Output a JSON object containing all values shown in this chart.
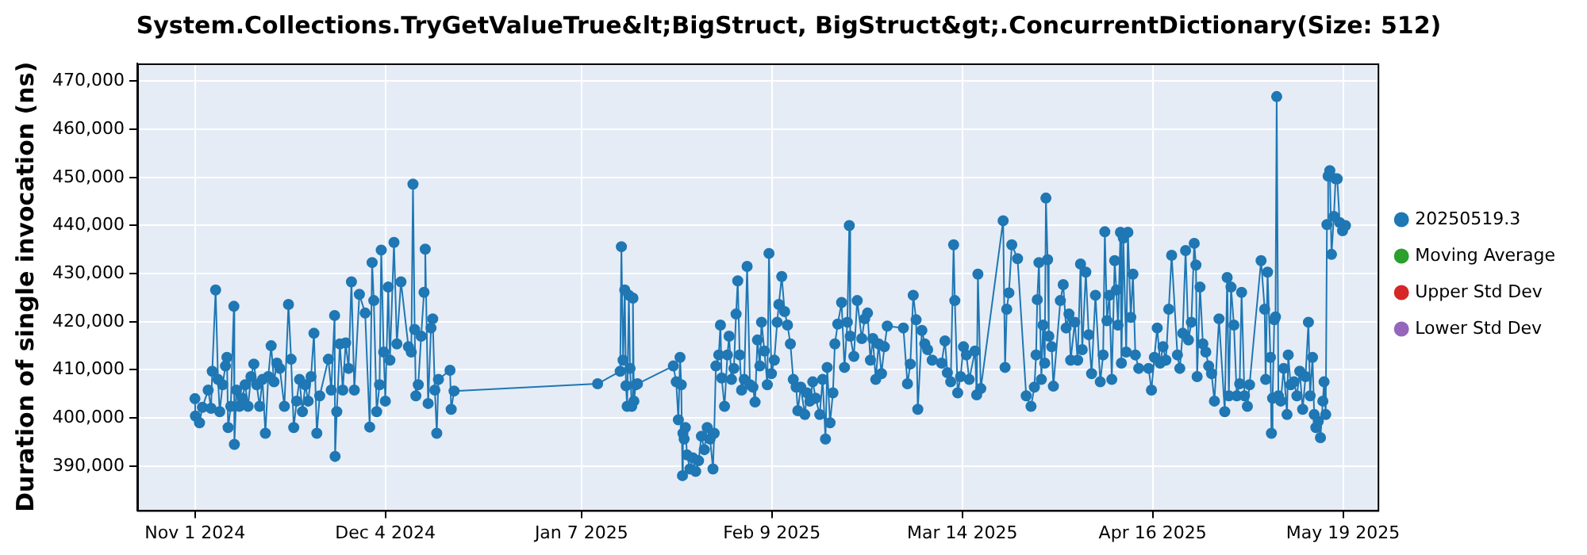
{
  "chart_data": {
    "type": "line",
    "title": "System.Collections.TryGetValueTrue&lt;BigStruct, BigStruct&gt;.ConcurrentDictionary(Size: 512)",
    "ylabel": "Duration of single invocation (ns)",
    "xlim": [
      "2024-10-22",
      "2025-05-25"
    ],
    "xticks": [
      {
        "value": "2024-11-01",
        "label": "Nov 1 2024"
      },
      {
        "value": "2024-12-04",
        "label": "Dec 4 2024"
      },
      {
        "value": "2025-01-07",
        "label": "Jan 7 2025"
      },
      {
        "value": "2025-02-09",
        "label": "Feb 9 2025"
      },
      {
        "value": "2025-03-14",
        "label": "Mar 14 2025"
      },
      {
        "value": "2025-04-16",
        "label": "Apr 16 2025"
      },
      {
        "value": "2025-05-19",
        "label": "May 19 2025"
      }
    ],
    "ylim": [
      380800,
      473700
    ],
    "yticks": [
      {
        "value": 390000,
        "label": "390,000"
      },
      {
        "value": 400000,
        "label": "400,000"
      },
      {
        "value": 410000,
        "label": "410,000"
      },
      {
        "value": 420000,
        "label": "420,000"
      },
      {
        "value": 430000,
        "label": "430,000"
      },
      {
        "value": 440000,
        "label": "440,000"
      },
      {
        "value": 450000,
        "label": "450,000"
      },
      {
        "value": 460000,
        "label": "460,000"
      },
      {
        "value": 470000,
        "label": "470,000"
      }
    ],
    "grid": true,
    "legend": "right",
    "marker": "circle",
    "line_style": "solid",
    "series": [
      {
        "name": "20250519.3",
        "color": "#1f77b4",
        "x": [
          "2024-11-01T00:00",
          "2024-11-01T02:00",
          "2024-11-01T19:00",
          "2024-11-02T07:00",
          "2024-11-03T07:00",
          "2024-11-03T19:00",
          "2024-11-04T00:00",
          "2024-11-04T14:00",
          "2024-11-05T00:00",
          "2024-11-05T07:00",
          "2024-11-05T19:00",
          "2024-11-06T07:00",
          "2024-11-06T13:00",
          "2024-11-06T18:00",
          "2024-11-07T05:00",
          "2024-11-07T18:00",
          "2024-11-07T20:00",
          "2024-11-08T05:00",
          "2024-11-08T17:00",
          "2024-11-09T05:00",
          "2024-11-09T17:00",
          "2024-11-10T05:00",
          "2024-11-10T17:00",
          "2024-11-11T05:00",
          "2024-11-11T17:00",
          "2024-11-12T05:00",
          "2024-11-12T17:00",
          "2024-11-13T05:00",
          "2024-11-13T17:00",
          "2024-11-14T05:00",
          "2024-11-14T17:00",
          "2024-11-15T05:00",
          "2024-11-15T17:00",
          "2024-11-16T12:00",
          "2024-11-17T05:00",
          "2024-11-17T16:00",
          "2024-11-18T03:00",
          "2024-11-18T15:00",
          "2024-11-19T03:00",
          "2024-11-19T15:00",
          "2024-11-20T03:00",
          "2024-11-20T15:00",
          "2024-11-21T03:00",
          "2024-11-21T15:00",
          "2024-11-22T03:00",
          "2024-11-22T15:00",
          "2024-11-24T03:00",
          "2024-11-24T15:00",
          "2024-11-25T05:00",
          "2024-11-25T07:00",
          "2024-11-25T14:00",
          "2024-11-26T03:00",
          "2024-11-26T15:00",
          "2024-11-27T03:00",
          "2024-11-27T15:00",
          "2024-11-28T03:00",
          "2024-11-28T15:00",
          "2024-11-29T12:00",
          "2024-11-30T12:00",
          "2024-12-01T07:00",
          "2024-12-01T17:00",
          "2024-12-02T00:00",
          "2024-12-02T12:00",
          "2024-12-03T00:00",
          "2024-12-03T07:00",
          "2024-12-03T17:00",
          "2024-12-04T00:00",
          "2024-12-04T12:00",
          "2024-12-04T19:00",
          "2024-12-05T12:00",
          "2024-12-06T00:00",
          "2024-12-06T17:00",
          "2024-12-08T00:00",
          "2024-12-08T12:00",
          "2024-12-08T19:00",
          "2024-12-09T02:00",
          "2024-12-09T07:00",
          "2024-12-09T17:00",
          "2024-12-10T05:00",
          "2024-12-10T17:00",
          "2024-12-10T22:00",
          "2024-12-11T10:00",
          "2024-12-11T22:00",
          "2024-12-12T05:00",
          "2024-12-12T14:00",
          "2024-12-12T22:00",
          "2024-12-13T05:00",
          "2024-12-15T05:00",
          "2024-12-15T10:00",
          "2024-12-15T22:00",
          "2025-01-09T19:00",
          "2025-01-13T17:00",
          "2025-01-13T22:00",
          "2025-01-14T05:00",
          "2025-01-14T12:00",
          "2025-01-14T17:00",
          "2025-01-14T22:00",
          "2025-01-15T05:00",
          "2025-01-15T10:00",
          "2025-01-15T17:00",
          "2025-01-15T22:00",
          "2025-01-16T02:00",
          "2025-01-16T10:00",
          "2025-01-16T17:00",
          "2025-01-22T22:00",
          "2025-01-23T10:00",
          "2025-01-23T19:00",
          "2025-01-24T02:00",
          "2025-01-24T07:00",
          "2025-01-24T12:00",
          "2025-01-24T14:00",
          "2025-01-24T19:00",
          "2025-01-25T00:00",
          "2025-01-25T07:00",
          "2025-01-25T19:00",
          "2025-01-26T07:00",
          "2025-01-26T19:00",
          "2025-01-27T07:00",
          "2025-01-27T19:00",
          "2025-01-28T07:00",
          "2025-01-28T19:00",
          "2025-01-29T07:00",
          "2025-01-29T19:00",
          "2025-01-30T00:00",
          "2025-01-30T07:00",
          "2025-01-30T19:00",
          "2025-01-31T02:00",
          "2025-01-31T07:00",
          "2025-01-31T19:00",
          "2025-02-01T07:00",
          "2025-02-01T14:00",
          "2025-02-02T00:00",
          "2025-02-02T10:00",
          "2025-02-02T19:00",
          "2025-02-03T02:00",
          "2025-02-03T10:00",
          "2025-02-03T18:00",
          "2025-02-04T05:00",
          "2025-02-04T17:00",
          "2025-02-05T05:00",
          "2025-02-05T17:00",
          "2025-02-06T02:00",
          "2025-02-06T12:00",
          "2025-02-06T22:00",
          "2025-02-07T05:00",
          "2025-02-07T17:00",
          "2025-02-08T05:00",
          "2025-02-08T12:00",
          "2025-02-08T22:00",
          "2025-02-09T10:00",
          "2025-02-09T22:00",
          "2025-02-10T05:00",
          "2025-02-10T17:00",
          "2025-02-11T05:00",
          "2025-02-11T17:00",
          "2025-02-12T05:00",
          "2025-02-12T17:00",
          "2025-02-13T05:00",
          "2025-02-13T12:00",
          "2025-02-14T00:00",
          "2025-02-14T17:00",
          "2025-02-15T02:00",
          "2025-02-15T14:00",
          "2025-02-16T02:00",
          "2025-02-16T14:00",
          "2025-02-17T07:00",
          "2025-02-17T19:00",
          "2025-02-18T07:00",
          "2025-02-18T14:00",
          "2025-02-19T02:00",
          "2025-02-19T14:00",
          "2025-02-19T22:00",
          "2025-02-20T10:00",
          "2025-02-21T02:00",
          "2025-02-21T14:00",
          "2025-02-22T02:00",
          "2025-02-22T10:00",
          "2025-02-22T14:00",
          "2025-02-23T05:00",
          "2025-02-23T19:00",
          "2025-02-24T14:00",
          "2025-02-25T02:00",
          "2025-02-25T14:00",
          "2025-02-26T02:00",
          "2025-02-26T12:00",
          "2025-02-27T00:00",
          "2025-02-27T12:00",
          "2025-02-28T00:00",
          "2025-02-28T12:00",
          "2025-03-01T00:00",
          "2025-03-03T19:00",
          "2025-03-04T12:00",
          "2025-03-05T00:00",
          "2025-03-05T12:00",
          "2025-03-06T00:00",
          "2025-03-06T07:00",
          "2025-03-07T00:00",
          "2025-03-07T12:00",
          "2025-03-08T00:00",
          "2025-03-08T19:00",
          "2025-03-10T10:00",
          "2025-03-11T00:00",
          "2025-03-11T10:00",
          "2025-03-12T00:00",
          "2025-03-12T12:00",
          "2025-03-12T17:00",
          "2025-03-13T05:00",
          "2025-03-13T17:00",
          "2025-03-14T05:00",
          "2025-03-14T17:00",
          "2025-03-15T05:00",
          "2025-03-16T05:00",
          "2025-03-16T12:00",
          "2025-03-16T17:00",
          "2025-03-17T05:00",
          "2025-03-21T02:00",
          "2025-03-21T10:00",
          "2025-03-21T17:00",
          "2025-03-22T02:00",
          "2025-03-22T14:00",
          "2025-03-23T14:00",
          "2025-03-25T02:00",
          "2025-03-25T22:00",
          "2025-03-26T12:00",
          "2025-03-26T19:00",
          "2025-03-27T00:00",
          "2025-03-27T07:00",
          "2025-03-27T17:00",
          "2025-03-28T00:00",
          "2025-03-28T07:00",
          "2025-03-28T12:00",
          "2025-03-28T19:00",
          "2025-03-29T00:00",
          "2025-03-29T12:00",
          "2025-03-29T19:00",
          "2025-03-31T00:00",
          "2025-03-31T12:00",
          "2025-04-01T00:00",
          "2025-04-01T12:00",
          "2025-04-01T19:00",
          "2025-04-02T12:00",
          "2025-04-03T00:00",
          "2025-04-03T12:00",
          "2025-04-03T19:00",
          "2025-04-04T10:00",
          "2025-04-04T22:00",
          "2025-04-05T10:00",
          "2025-04-06T02:00",
          "2025-04-06T22:00",
          "2025-04-07T10:00",
          "2025-04-07T17:00",
          "2025-04-08T02:00",
          "2025-04-08T12:00",
          "2025-04-08T22:00",
          "2025-04-09T10:00",
          "2025-04-09T17:00",
          "2025-04-10T00:00",
          "2025-04-10T10:00",
          "2025-04-10T14:00",
          "2025-04-10T22:00",
          "2025-04-11T10:00",
          "2025-04-11T17:00",
          "2025-04-12T05:00",
          "2025-04-12T14:00",
          "2025-04-13T00:00",
          "2025-04-13T14:00",
          "2025-04-15T07:00",
          "2025-04-15T19:00",
          "2025-04-16T07:00",
          "2025-04-16T19:00",
          "2025-04-17T07:00",
          "2025-04-17T19:00",
          "2025-04-18T07:00",
          "2025-04-18T19:00",
          "2025-04-19T07:00",
          "2025-04-20T07:00",
          "2025-04-20T17:00",
          "2025-04-21T05:00",
          "2025-04-21T17:00",
          "2025-04-22T05:00",
          "2025-04-22T17:00",
          "2025-04-23T05:00",
          "2025-04-23T12:00",
          "2025-04-23T17:00",
          "2025-04-24T05:00",
          "2025-04-24T17:00",
          "2025-04-25T05:00",
          "2025-04-25T17:00",
          "2025-04-26T05:00",
          "2025-04-26T17:00",
          "2025-04-27T12:00",
          "2025-04-28T12:00",
          "2025-04-28T22:00",
          "2025-04-29T05:00",
          "2025-04-29T14:00",
          "2025-04-30T02:00",
          "2025-04-30T14:00",
          "2025-05-01T02:00",
          "2025-05-01T10:00",
          "2025-05-01T22:00",
          "2025-05-02T10:00",
          "2025-05-02T19:00",
          "2025-05-04T19:00",
          "2025-05-05T10:00",
          "2025-05-05T14:00",
          "2025-05-05T22:00",
          "2025-05-06T10:00",
          "2025-05-06T14:00",
          "2025-05-06T19:00",
          "2025-05-07T02:00",
          "2025-05-07T07:00",
          "2025-05-07T12:00",
          "2025-05-07T19:00",
          "2025-05-08T05:00",
          "2025-05-08T17:00",
          "2025-05-09T07:00",
          "2025-05-09T12:00",
          "2025-05-09T22:00",
          "2025-05-10T12:00",
          "2025-05-11T00:00",
          "2025-05-11T12:00",
          "2025-05-12T00:00",
          "2025-05-12T12:00",
          "2025-05-13T00:00",
          "2025-05-13T07:00",
          "2025-05-13T17:00",
          "2025-05-14T00:00",
          "2025-05-14T07:00",
          "2025-05-14T17:00",
          "2025-05-15T02:00",
          "2025-05-15T12:00",
          "2025-05-15T17:00",
          "2025-05-16T00:00",
          "2025-05-16T05:00",
          "2025-05-16T10:00",
          "2025-05-16T17:00",
          "2025-05-17T00:00",
          "2025-05-17T10:00",
          "2025-05-17T17:00",
          "2025-05-18T00:00",
          "2025-05-18T10:00",
          "2025-05-18T22:00",
          "2025-05-19T10:00"
        ],
        "values": [
          404000,
          400400,
          399000,
          402200,
          405800,
          402000,
          409700,
          426600,
          408000,
          401300,
          406900,
          410800,
          412600,
          398000,
          402400,
          423200,
          394500,
          405800,
          402400,
          404100,
          406900,
          402400,
          408600,
          411200,
          406900,
          402400,
          408000,
          396800,
          408600,
          415000,
          407500,
          411400,
          410300,
          402400,
          423600,
          412200,
          398000,
          403500,
          408000,
          401300,
          406900,
          403500,
          408600,
          417600,
          396800,
          404600,
          412200,
          405800,
          421300,
          392000,
          401300,
          415400,
          405800,
          415600,
          410300,
          428300,
          405800,
          425700,
          421800,
          398100,
          432300,
          424400,
          401300,
          406900,
          434900,
          413700,
          403500,
          427200,
          412000,
          436500,
          415400,
          428300,
          414800,
          413700,
          448600,
          418400,
          404600,
          406900,
          417000,
          426100,
          435100,
          403000,
          418700,
          420600,
          405800,
          396800,
          408000,
          409900,
          401800,
          405600,
          407100,
          409700,
          435600,
          412000,
          426600,
          406700,
          402400,
          425500,
          410300,
          402400,
          424900,
          403500,
          406900,
          407100,
          410800,
          407500,
          399600,
          412600,
          406900,
          388000,
          396800,
          395600,
          398000,
          392300,
          389400,
          391700,
          388900,
          391100,
          396200,
          393400,
          398000,
          395600,
          389400,
          396800,
          410800,
          413100,
          419300,
          408300,
          402400,
          413100,
          417000,
          408000,
          410300,
          421600,
          428500,
          413100,
          405800,
          408000,
          431500,
          406900,
          406400,
          403300,
          416200,
          410800,
          419900,
          413900,
          406900,
          434200,
          409200,
          412000,
          419900,
          423600,
          429400,
          422100,
          419300,
          415400,
          408000,
          406400,
          401500,
          406400,
          400700,
          405200,
          403500,
          407500,
          404100,
          400700,
          408000,
          395600,
          410500,
          399000,
          405200,
          415400,
          419500,
          424000,
          410500,
          419900,
          440000,
          417000,
          412800,
          424400,
          416500,
          420600,
          421800,
          412000,
          416500,
          408000,
          415400,
          409200,
          414800,
          419100,
          418700,
          407100,
          411200,
          425500,
          420400,
          401800,
          418200,
          415400,
          414200,
          412000,
          411400,
          416000,
          409400,
          407500,
          436000,
          424400,
          405200,
          408600,
          414800,
          413100,
          408000,
          413900,
          404800,
          429900,
          406100,
          441000,
          410500,
          422600,
          426000,
          436000,
          433100,
          404600,
          402400,
          406400,
          413100,
          424600,
          432300,
          408000,
          419300,
          411400,
          445700,
          432900,
          417000,
          414800,
          406600,
          424400,
          427700,
          418700,
          421600,
          412000,
          419900,
          412000,
          432000,
          414200,
          430300,
          417300,
          409200,
          425500,
          407500,
          413100,
          438700,
          420200,
          425500,
          408000,
          432700,
          426600,
          419300,
          438600,
          411400,
          437400,
          413700,
          438600,
          420900,
          429900,
          413100,
          410300,
          410300,
          405800,
          412600,
          418700,
          411400,
          414800,
          412000,
          422600,
          433800,
          413100,
          410300,
          417600,
          434800,
          416200,
          419900,
          436300,
          431800,
          408600,
          427200,
          415400,
          413700,
          410800,
          409200,
          403500,
          420600,
          401300,
          429200,
          404600,
          427200,
          419300,
          404600,
          407100,
          426100,
          404600,
          402400,
          406900,
          432700,
          422600,
          408000,
          430300,
          412600,
          396800,
          404100,
          420400,
          421000,
          466800,
          404600,
          403500,
          410300,
          400700,
          413100,
          406900,
          407500,
          404600,
          409700,
          401800,
          408600,
          419900,
          404600,
          412600,
          400700,
          398000,
          399300,
          395900,
          403500,
          407500,
          400700,
          440200,
          450300,
          451400,
          434000,
          441900,
          449700,
          449700,
          440600,
          438900,
          440000
        ]
      },
      {
        "name": "Moving Average",
        "color": "#2ca02c"
      },
      {
        "name": "Upper Std Dev",
        "color": "#d62728"
      },
      {
        "name": "Lower Std Dev",
        "color": "#9467bd"
      }
    ]
  }
}
